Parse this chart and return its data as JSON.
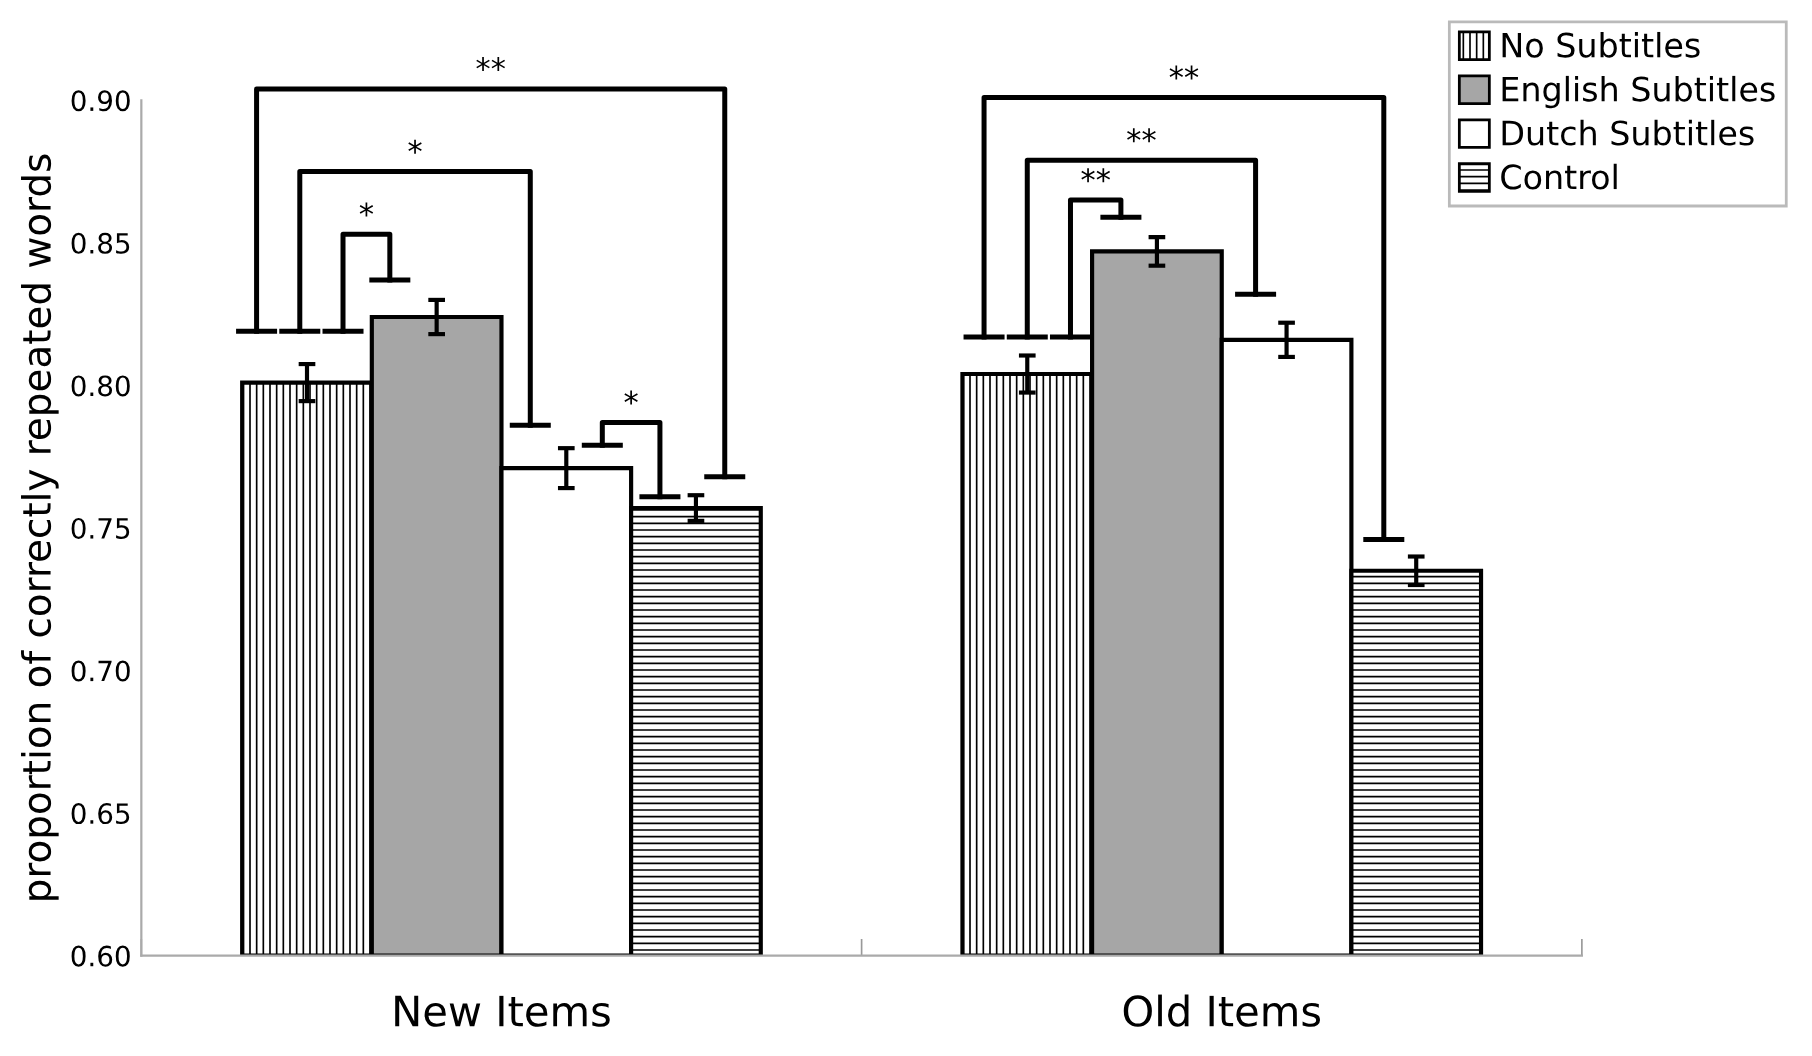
{
  "chart_data": {
    "type": "bar",
    "ylabel": "proportion of correctly repeated words",
    "categories": [
      "New Items",
      "Old Items"
    ],
    "ylim": [
      0.6,
      0.9
    ],
    "yticks": [
      {
        "value": 0.6,
        "label": "0.60"
      },
      {
        "value": 0.65,
        "label": "0.65"
      },
      {
        "value": 0.7,
        "label": "0.70"
      },
      {
        "value": 0.75,
        "label": "0.75"
      },
      {
        "value": 0.8,
        "label": "0.80"
      },
      {
        "value": 0.85,
        "label": "0.85"
      },
      {
        "value": 0.9,
        "label": "0.90"
      }
    ],
    "legend": "top right",
    "grid": false,
    "series": [
      {
        "name": "No Subtitles",
        "color": "#000000",
        "values": [
          0.801,
          0.804
        ],
        "errors": [
          0.0065,
          0.0065
        ]
      },
      {
        "name": "English Subtitles",
        "color": "#a6a6a6",
        "values": [
          0.824,
          0.847
        ],
        "errors": [
          0.006,
          0.005
        ]
      },
      {
        "name": "Dutch Subtitles",
        "color": "#ffffff",
        "values": [
          0.771,
          0.816
        ],
        "errors": [
          0.007,
          0.006
        ]
      },
      {
        "name": "Control",
        "color": "#000000",
        "values": [
          0.757,
          0.735
        ],
        "errors": [
          0.0045,
          0.005
        ]
      }
    ],
    "annotations": [
      "**",
      "*",
      "*",
      "*",
      "**",
      "**",
      "**"
    ]
  }
}
